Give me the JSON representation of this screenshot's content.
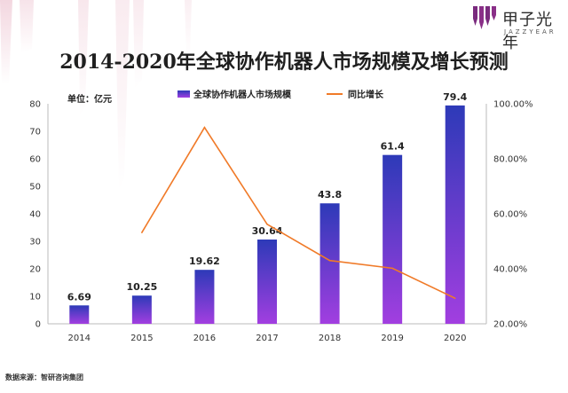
{
  "brand": {
    "name_cn": "甲子光年",
    "name_en": "JAZZYEAR",
    "accent_color": "#7a2b7e"
  },
  "title": "2014-2020年全球协作机器人市场规模及增长预测",
  "unit_label": "单位：亿元",
  "source_label": "数据来源：智研咨询集团",
  "chart_data": {
    "type": "bar",
    "title": "2014-2020年全球协作机器人市场规模及增长预测",
    "categories": [
      "2014",
      "2015",
      "2016",
      "2017",
      "2018",
      "2019",
      "2020"
    ],
    "series": [
      {
        "name": "全球协作机器人市场规模",
        "type": "bar",
        "axis": "left",
        "values": [
          6.69,
          10.25,
          19.62,
          30.64,
          43.8,
          61.4,
          79.4
        ],
        "labels": [
          "6.69",
          "10.25",
          "19.62",
          "30.64",
          "43.8",
          "61.4",
          "79.4"
        ],
        "color_top": "#2d3ab8",
        "color_bottom": "#a23ee0"
      },
      {
        "name": "同比增长",
        "type": "line",
        "axis": "right",
        "values": [
          null,
          53.2,
          91.4,
          56.2,
          43.0,
          40.2,
          29.3
        ],
        "color": "#f07a28"
      }
    ],
    "y_left": {
      "min": 0,
      "max": 80,
      "ticks": [
        0,
        10,
        20,
        30,
        40,
        50,
        60,
        70,
        80
      ],
      "tick_labels": [
        "0",
        "10",
        "20",
        "30",
        "40",
        "50",
        "60",
        "70",
        "80"
      ]
    },
    "y_right": {
      "min": 20,
      "max": 100,
      "ticks": [
        20,
        40,
        60,
        80,
        100
      ],
      "tick_labels": [
        "20.00%",
        "40.00%",
        "60.00%",
        "80.00%",
        "100.00%"
      ]
    },
    "legend_position": "top",
    "grid": false
  }
}
